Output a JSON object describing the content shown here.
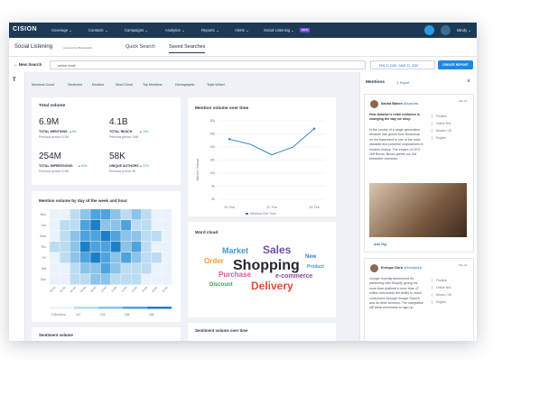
{
  "nav": {
    "logo": "CISION",
    "items": [
      "Coverage",
      "Contacts",
      "Campaigns",
      "Analytics",
      "Reports",
      "Alerts",
      "Social Listening"
    ],
    "badge": "NEW",
    "user": "Mindy"
  },
  "header": {
    "title": "Social Listening",
    "powered": "powered by Brandwatch",
    "tabs": [
      "Quick Search",
      "Saved Searches"
    ]
  },
  "toolbar": {
    "back": "New Search",
    "search": "online retail",
    "date": "FEB 21 2020 - MAR 22, 2020",
    "button": "CREATE REPORT"
  },
  "sidebar": {
    "icon": "T"
  },
  "tabs": [
    "Mentions Count",
    "Sentiment",
    "Emotion",
    "Word Cloud",
    "Top Mentions",
    "Demographic",
    "Topic Wheel"
  ],
  "total_volume": {
    "title": "Total volume",
    "stats": [
      {
        "value": "6.9M",
        "label": "TOTAL MENTIONS",
        "change": "8%",
        "previous": "Previous period: 6.2M"
      },
      {
        "value": "4.1B",
        "label": "TOTAL REACH",
        "change": "15%",
        "previous": "Previous period: 3.6B"
      },
      {
        "value": "254M",
        "label": "TOTAL IMPRESSIONS",
        "change": "54%",
        "previous": "Previous period: 6.2M"
      },
      {
        "value": "58K",
        "label": "UNIQUE AUTHORS",
        "change": "37%",
        "previous": "Previous period: 9K"
      }
    ]
  },
  "heatmap": {
    "title": "Mention volume by day of the week and hour",
    "days": [
      "Mon",
      "Tue",
      "Wed",
      "Thu",
      "Fri",
      "Sat",
      "Sun"
    ],
    "hours": [
      "00:00",
      "02:00",
      "04:00",
      "06:00",
      "08:00",
      "10:00",
      "12:00",
      "14:00",
      "16:00",
      "18:00",
      "20:00",
      "22:00"
    ],
    "values": [
      [
        10,
        10,
        130,
        240,
        350,
        350,
        240,
        130,
        240,
        130,
        10,
        10
      ],
      [
        10,
        130,
        130,
        350,
        460,
        240,
        240,
        350,
        130,
        130,
        10,
        10
      ],
      [
        10,
        130,
        240,
        350,
        350,
        460,
        350,
        240,
        240,
        130,
        130,
        10
      ],
      [
        130,
        130,
        240,
        460,
        350,
        350,
        460,
        240,
        350,
        130,
        10,
        10
      ],
      [
        10,
        130,
        240,
        350,
        460,
        350,
        240,
        350,
        240,
        130,
        130,
        10
      ],
      [
        10,
        10,
        130,
        240,
        240,
        350,
        240,
        130,
        130,
        130,
        10,
        10
      ],
      [
        10,
        10,
        130,
        130,
        240,
        240,
        130,
        130,
        130,
        10,
        10,
        10
      ]
    ],
    "legend": [
      {
        "value": 0,
        "label": "0 Mentions"
      },
      {
        "value": 112,
        "label": "112"
      },
      {
        "value": 224,
        "label": "224"
      },
      {
        "value": 336,
        "label": "336"
      },
      {
        "value": 448,
        "label": "448"
      }
    ],
    "colors": [
      "#eaf3fb",
      "#bcdcf2",
      "#8cc3e8",
      "#4fa3dc",
      "#1f7fc4"
    ]
  },
  "chart_data": {
    "type": "line",
    "title": "Mention volume over time",
    "y_label": "Mention Volume",
    "categories": [
      "20. Feb",
      null,
      "22. Feb",
      null,
      "24. Feb"
    ],
    "series": [
      {
        "name": "Mentions Over Time",
        "color": "#1f7fc4",
        "values": [
          23000,
          21000,
          17000,
          20000,
          27000
        ]
      }
    ],
    "ylim": [
      0,
      30000
    ],
    "yticks": [
      {
        "value": 0,
        "label": "0k"
      },
      {
        "value": 5000,
        "label": "5k"
      },
      {
        "value": 10000,
        "label": "10k"
      },
      {
        "value": 15000,
        "label": "15k"
      },
      {
        "value": 20000,
        "label": "20k"
      },
      {
        "value": 25000,
        "label": "25k"
      },
      {
        "value": 30000,
        "label": "30k"
      }
    ],
    "grid": true
  },
  "word_cloud": {
    "title": "Word cloud",
    "words": [
      {
        "text": "Market",
        "color": "#3b9ad9"
      },
      {
        "text": "Sales",
        "color": "#6a4fa3"
      },
      {
        "text": "New",
        "color": "#3b7fd9"
      },
      {
        "text": "Order",
        "color": "#f39c2b"
      },
      {
        "text": "Shopping",
        "color": "#222831"
      },
      {
        "text": "Product",
        "color": "#3b9ad9"
      },
      {
        "text": "Purchase",
        "color": "#e0559b"
      },
      {
        "text": "e-commerce",
        "color": "#8e44ad"
      },
      {
        "text": "Discount",
        "color": "#3aa655"
      },
      {
        "text": "Delivery",
        "color": "#e8483b"
      }
    ]
  },
  "bottom_cards": [
    "Sentiment volume",
    "Sentiment volume over time"
  ],
  "mentions": {
    "title": "Mentions",
    "export": "Export",
    "posts": [
      {
        "author": "Sasha Bahen",
        "handle": "@sashba",
        "date": "Mar 22",
        "headline": "How Amazon's retail evolution is changing the way we shop",
        "body": "In the course of a single generation, Amazon has grown from Bookshop on the basement to one of the most valuable and powerful corporations in modern history. The empire of CEO Jeff Bezos. Bezos greets our 3rd bestseller overseas.",
        "meta": [
          "Positive",
          "Online N/A",
          "Boston, US",
          "English"
        ],
        "tag": "Add Tag"
      },
      {
        "author": "Enrique Dora",
        "handle": "@enriqdora",
        "date": "Mar 22",
        "headline": "",
        "body": "Google recently announced it's partnering with Shopify, giving the more than platform's more than 47 million merchants the ability to reach consumers through Google Search and its other services. The integration will allow merchants to sign up.",
        "meta": [
          "Positive",
          "Online N/A",
          "Boston, US",
          "English"
        ]
      }
    ]
  }
}
